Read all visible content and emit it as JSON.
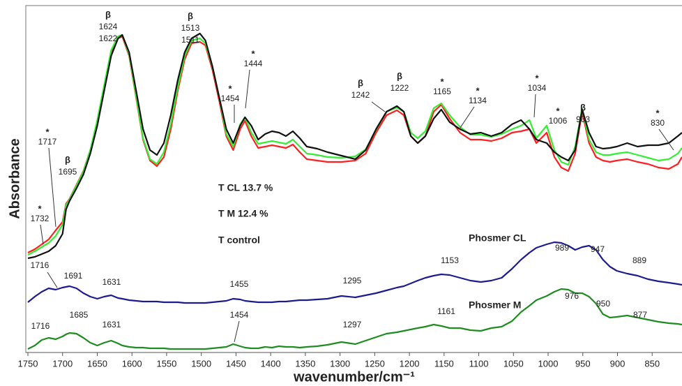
{
  "chart_data": {
    "type": "line",
    "xlabel": "wavenumber/cm⁻¹",
    "ylabel": "Absorbance",
    "xlim": [
      1750,
      807
    ],
    "ylim": [
      0,
      497
    ],
    "xticks": [
      1750,
      1700,
      1650,
      1600,
      1550,
      1500,
      1450,
      1400,
      1350,
      1300,
      1250,
      1200,
      1150,
      1100,
      1050,
      1000,
      950,
      900,
      850
    ],
    "x": [
      1750,
      1740,
      1730,
      1720,
      1710,
      1700,
      1695,
      1690,
      1680,
      1670,
      1660,
      1650,
      1640,
      1630,
      1620,
      1614,
      1604,
      1594,
      1584,
      1574,
      1564,
      1554,
      1544,
      1534,
      1524,
      1514,
      1502,
      1494,
      1484,
      1474,
      1464,
      1454,
      1444,
      1437,
      1428,
      1418,
      1408,
      1398,
      1388,
      1378,
      1368,
      1358,
      1348,
      1333,
      1318,
      1298,
      1278,
      1263,
      1248,
      1233,
      1218,
      1208,
      1198,
      1188,
      1177,
      1165,
      1154,
      1142,
      1127,
      1112,
      1097,
      1082,
      1067,
      1052,
      1039,
      1027,
      1017,
      1002,
      991,
      981,
      971,
      961,
      951,
      941,
      931,
      921,
      911,
      901,
      886,
      871,
      856,
      841,
      826,
      813,
      807
    ],
    "series": [
      {
        "name": "T CL  13.7 %",
        "color": "#ff1f1f",
        "values": [
          143,
          148,
          155,
          162,
          175,
          187,
          213,
          220,
          240,
          260,
          290,
          330,
          380,
          430,
          450,
          453,
          425,
          365,
          305,
          275,
          267,
          280,
          320,
          375,
          420,
          443,
          445,
          440,
          405,
          360,
          310,
          290,
          320,
          332,
          310,
          293,
          295,
          297,
          295,
          293,
          298,
          287,
          277,
          275,
          273,
          273,
          275,
          285,
          315,
          340,
          347,
          340,
          310,
          300,
          310,
          345,
          355,
          335,
          315,
          305,
          305,
          303,
          307,
          315,
          317,
          320,
          300,
          315,
          280,
          265,
          260,
          285,
          345,
          300,
          280,
          275,
          273,
          275,
          277,
          273,
          270,
          265,
          263,
          270,
          280
        ]
      },
      {
        "name": "T M 12.4 %",
        "color": "#33ee33",
        "values": [
          140,
          145,
          151,
          157,
          167,
          183,
          211,
          219,
          239,
          259,
          290,
          333,
          383,
          433,
          453,
          455,
          427,
          367,
          307,
          277,
          270,
          287,
          327,
          380,
          425,
          447,
          450,
          443,
          409,
          365,
          313,
          295,
          327,
          337,
          315,
          299,
          301,
          303,
          301,
          299,
          305,
          295,
          285,
          283,
          280,
          279,
          281,
          291,
          319,
          345,
          351,
          345,
          315,
          307,
          317,
          350,
          357,
          340,
          323,
          312,
          312,
          309,
          313,
          320,
          325,
          333,
          307,
          325,
          290,
          273,
          269,
          295,
          350,
          305,
          287,
          283,
          283,
          285,
          287,
          283,
          279,
          275,
          277,
          285,
          293
        ]
      },
      {
        "name": "T control",
        "color": "#111111",
        "values": [
          135,
          137,
          141,
          145,
          153,
          170,
          205,
          217,
          235,
          255,
          285,
          325,
          375,
          425,
          450,
          455,
          430,
          375,
          320,
          290,
          283,
          300,
          340,
          390,
          430,
          450,
          457,
          447,
          410,
          365,
          320,
          300,
          325,
          337,
          325,
          305,
          313,
          317,
          315,
          310,
          317,
          307,
          295,
          292,
          287,
          282,
          277,
          290,
          320,
          345,
          353,
          345,
          310,
          300,
          310,
          335,
          348,
          330,
          320,
          313,
          315,
          310,
          315,
          327,
          333,
          320,
          305,
          300,
          287,
          280,
          275,
          290,
          348,
          315,
          295,
          292,
          293,
          295,
          300,
          295,
          297,
          297,
          300,
          310,
          315
        ]
      },
      {
        "name": "Phosmer CL",
        "color": "#1c1c8e",
        "values": [
          72,
          80,
          87,
          92,
          90,
          93,
          94,
          95,
          92,
          85,
          80,
          77,
          80,
          82,
          78,
          77,
          75,
          74,
          73,
          73,
          73,
          72,
          72,
          72,
          71,
          71,
          71,
          71,
          72,
          73,
          74,
          77,
          76,
          74,
          73,
          72,
          72,
          72,
          73,
          73,
          74,
          75,
          75,
          76,
          77,
          81,
          79,
          82,
          85,
          89,
          93,
          95,
          99,
          103,
          107,
          110,
          112,
          111,
          107,
          103,
          101,
          103,
          107,
          120,
          133,
          143,
          150,
          155,
          158,
          157,
          153,
          147,
          151,
          153,
          147,
          133,
          123,
          117,
          113,
          110,
          105,
          102,
          100,
          98,
          97
        ]
      },
      {
        "name": "Phosmer M",
        "color": "#1e8c1e",
        "values": [
          5,
          10,
          18,
          21,
          19,
          23,
          26,
          28,
          27,
          21,
          14,
          10,
          14,
          17,
          13,
          10,
          8,
          7,
          7,
          6,
          6,
          6,
          5,
          5,
          5,
          5,
          5,
          5,
          6,
          7,
          8,
          12,
          9,
          7,
          6,
          6,
          8,
          7,
          9,
          8,
          8,
          7,
          8,
          9,
          11,
          15,
          12,
          17,
          22,
          27,
          29,
          31,
          33,
          35,
          37,
          40,
          38,
          35,
          35,
          32,
          31,
          35,
          37,
          45,
          58,
          67,
          75,
          81,
          87,
          91,
          90,
          85,
          85,
          80,
          70,
          55,
          50,
          51,
          53,
          50,
          47,
          44,
          42,
          41,
          40
        ]
      }
    ],
    "annotations": [
      [
        "*",
        "1732"
      ],
      [
        "*",
        "1717"
      ],
      [
        "β",
        "1695"
      ],
      [
        "β",
        "1624",
        "1622"
      ],
      [
        "β",
        "1513",
        "1511"
      ],
      [
        "*",
        "1454"
      ],
      [
        "*",
        "1444"
      ],
      [
        "β",
        "1242"
      ],
      [
        "β",
        "1222"
      ],
      [
        "*",
        "1165"
      ],
      [
        "*",
        "1134"
      ],
      [
        "*",
        "1034"
      ],
      [
        "*",
        "1006"
      ],
      [
        "β",
        "963"
      ],
      [
        "*",
        "830"
      ],
      [
        "1716"
      ],
      [
        "1691"
      ],
      [
        "1631"
      ],
      [
        "1455"
      ],
      [
        "1295"
      ],
      [
        "1153"
      ],
      [
        "989"
      ],
      [
        "947"
      ],
      [
        "889"
      ],
      [
        "1716"
      ],
      [
        "1685"
      ],
      [
        "1631"
      ],
      [
        "1454"
      ],
      [
        "1297"
      ],
      [
        "1161"
      ],
      [
        "976"
      ],
      [
        "950"
      ],
      [
        "877"
      ]
    ]
  }
}
